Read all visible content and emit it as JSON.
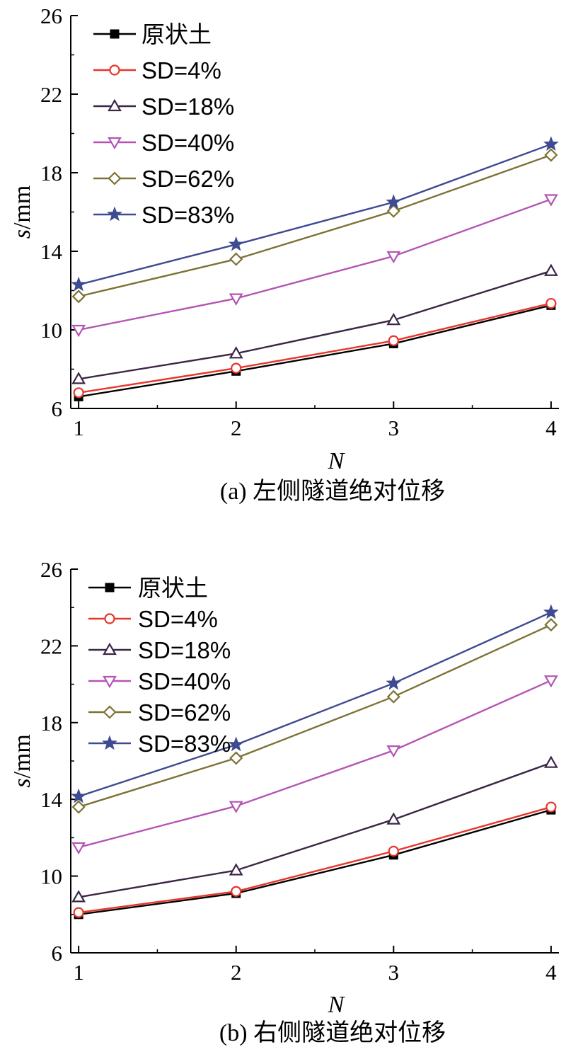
{
  "chart_data": [
    {
      "type": "line",
      "caption": "(a) 左侧隧道绝对位移",
      "xlabel": "N",
      "ylabel": "s/mm",
      "ylabel_var": "s",
      "ylabel_unit": "/mm",
      "categories": [
        "1",
        "2",
        "3",
        "4"
      ],
      "x": [
        1,
        2,
        3,
        4
      ],
      "xlim": [
        0.95,
        4.05
      ],
      "ylim": [
        6,
        26
      ],
      "yticks": [
        6,
        10,
        14,
        18,
        22,
        26
      ],
      "legend_position": "top-left",
      "series": [
        {
          "name": "原状土",
          "values": [
            6.6,
            7.9,
            9.3,
            11.25
          ],
          "color": "#000000",
          "marker": "square-filled"
        },
        {
          "name": "SD=4%",
          "values": [
            6.8,
            8.05,
            9.45,
            11.35
          ],
          "color": "#e8352a",
          "marker": "circle-open"
        },
        {
          "name": "SD=18%",
          "values": [
            7.5,
            8.8,
            10.5,
            13.0
          ],
          "color": "#3a2645",
          "marker": "triangle-up-open"
        },
        {
          "name": "SD=40%",
          "values": [
            10.0,
            11.6,
            13.75,
            16.65
          ],
          "color": "#b455b4",
          "marker": "triangle-down-open"
        },
        {
          "name": "SD=62%",
          "values": [
            11.7,
            13.6,
            16.05,
            18.9
          ],
          "color": "#7d7235",
          "marker": "diamond-open"
        },
        {
          "name": "SD=83%",
          "values": [
            12.3,
            14.35,
            16.5,
            19.45
          ],
          "color": "#3e4a91",
          "marker": "star-filled"
        }
      ]
    },
    {
      "type": "line",
      "caption": "(b) 右侧隧道绝对位移",
      "xlabel": "N",
      "ylabel": "s/mm",
      "ylabel_var": "s",
      "ylabel_unit": "/mm",
      "categories": [
        "1",
        "2",
        "3",
        "4"
      ],
      "x": [
        1,
        2,
        3,
        4
      ],
      "xlim": [
        0.95,
        4.05
      ],
      "ylim": [
        6,
        26
      ],
      "yticks": [
        6,
        10,
        14,
        18,
        22,
        26
      ],
      "legend_position": "top-left",
      "series": [
        {
          "name": "原状土",
          "values": [
            8.0,
            9.1,
            11.1,
            13.45
          ],
          "color": "#000000",
          "marker": "square-filled"
        },
        {
          "name": "SD=4%",
          "values": [
            8.1,
            9.2,
            11.3,
            13.6
          ],
          "color": "#e8352a",
          "marker": "circle-open"
        },
        {
          "name": "SD=18%",
          "values": [
            8.9,
            10.3,
            12.95,
            15.9
          ],
          "color": "#3a2645",
          "marker": "triangle-up-open"
        },
        {
          "name": "SD=40%",
          "values": [
            11.5,
            13.65,
            16.55,
            20.2
          ],
          "color": "#b455b4",
          "marker": "triangle-down-open"
        },
        {
          "name": "SD=62%",
          "values": [
            13.6,
            16.15,
            19.35,
            23.1
          ],
          "color": "#7d7235",
          "marker": "diamond-open"
        },
        {
          "name": "SD=83%",
          "values": [
            14.15,
            16.85,
            20.05,
            23.75
          ],
          "color": "#3e4a91",
          "marker": "star-filled"
        }
      ]
    }
  ]
}
